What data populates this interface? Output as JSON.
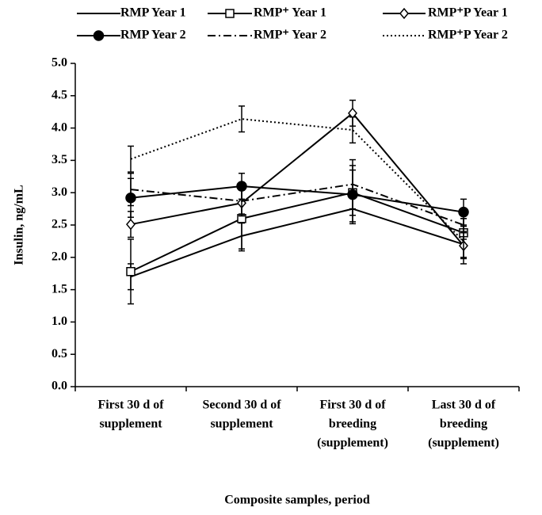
{
  "chart_data": {
    "type": "line",
    "x_label": "Composite samples, period",
    "y_label": "Insulin, ng/mL",
    "categories": [
      [
        "First 30 d of",
        "supplement"
      ],
      [
        "Second 30 d of",
        "supplement"
      ],
      [
        "First 30 d of",
        "breeding",
        "(supplement)"
      ],
      [
        "Last 30 d of",
        "breeding",
        "(supplement)"
      ]
    ],
    "ylim": [
      0,
      5
    ],
    "yticks": [
      {
        "value": 0,
        "label": "0.0"
      },
      0.5,
      {
        "value": 1,
        "label": "1.0"
      },
      1.5,
      {
        "value": 2,
        "label": "2.0"
      },
      2.5,
      {
        "value": 3,
        "label": "3.0"
      },
      3.5,
      {
        "value": 4,
        "label": "4.0"
      },
      4.5,
      {
        "value": 5,
        "label": "5.0"
      }
    ],
    "grid": false,
    "legend": "top",
    "series": [
      {
        "name": "RMP Year 1",
        "color": "#000000",
        "dash": "solid",
        "marker": "none",
        "values": [
          1.7,
          2.33,
          2.75,
          2.2
        ],
        "errors": [
          0.2,
          0.2,
          0.2,
          0.2
        ]
      },
      {
        "name": "RMP⁺ Year 1",
        "color": "#000000",
        "dash": "solid",
        "marker": "square",
        "values": [
          1.78,
          2.6,
          3.0,
          2.38
        ],
        "errors": [
          0.5,
          0.5,
          0.35,
          0.1
        ]
      },
      {
        "name": "RMP⁺P Year 1",
        "color": "#000000",
        "dash": "solid",
        "marker": "diamond",
        "values": [
          2.51,
          2.84,
          4.23,
          2.18
        ],
        "errors": [
          0.2,
          0.2,
          0.2,
          0.2
        ]
      },
      {
        "name": "RMP Year 2",
        "color": "#000000",
        "dash": "solid",
        "marker": "circle",
        "values": [
          2.92,
          3.1,
          2.97,
          2.7
        ],
        "errors": [
          0.3,
          0.2,
          0.45,
          0.2
        ]
      },
      {
        "name": "RMP⁺ Year 2",
        "color": "#000000",
        "dash": "dashdot",
        "marker": "none",
        "values": [
          3.05,
          2.87,
          3.13,
          2.5
        ],
        "errors": [
          0.25,
          0.2,
          0.38,
          0.1
        ]
      },
      {
        "name": "RMP⁺P Year 2",
        "color": "#000000",
        "dash": "dotted",
        "marker": "none",
        "values": [
          3.52,
          4.14,
          3.97,
          2.25
        ],
        "errors": [
          0.2,
          0.2,
          0.2,
          0.35
        ]
      }
    ]
  }
}
